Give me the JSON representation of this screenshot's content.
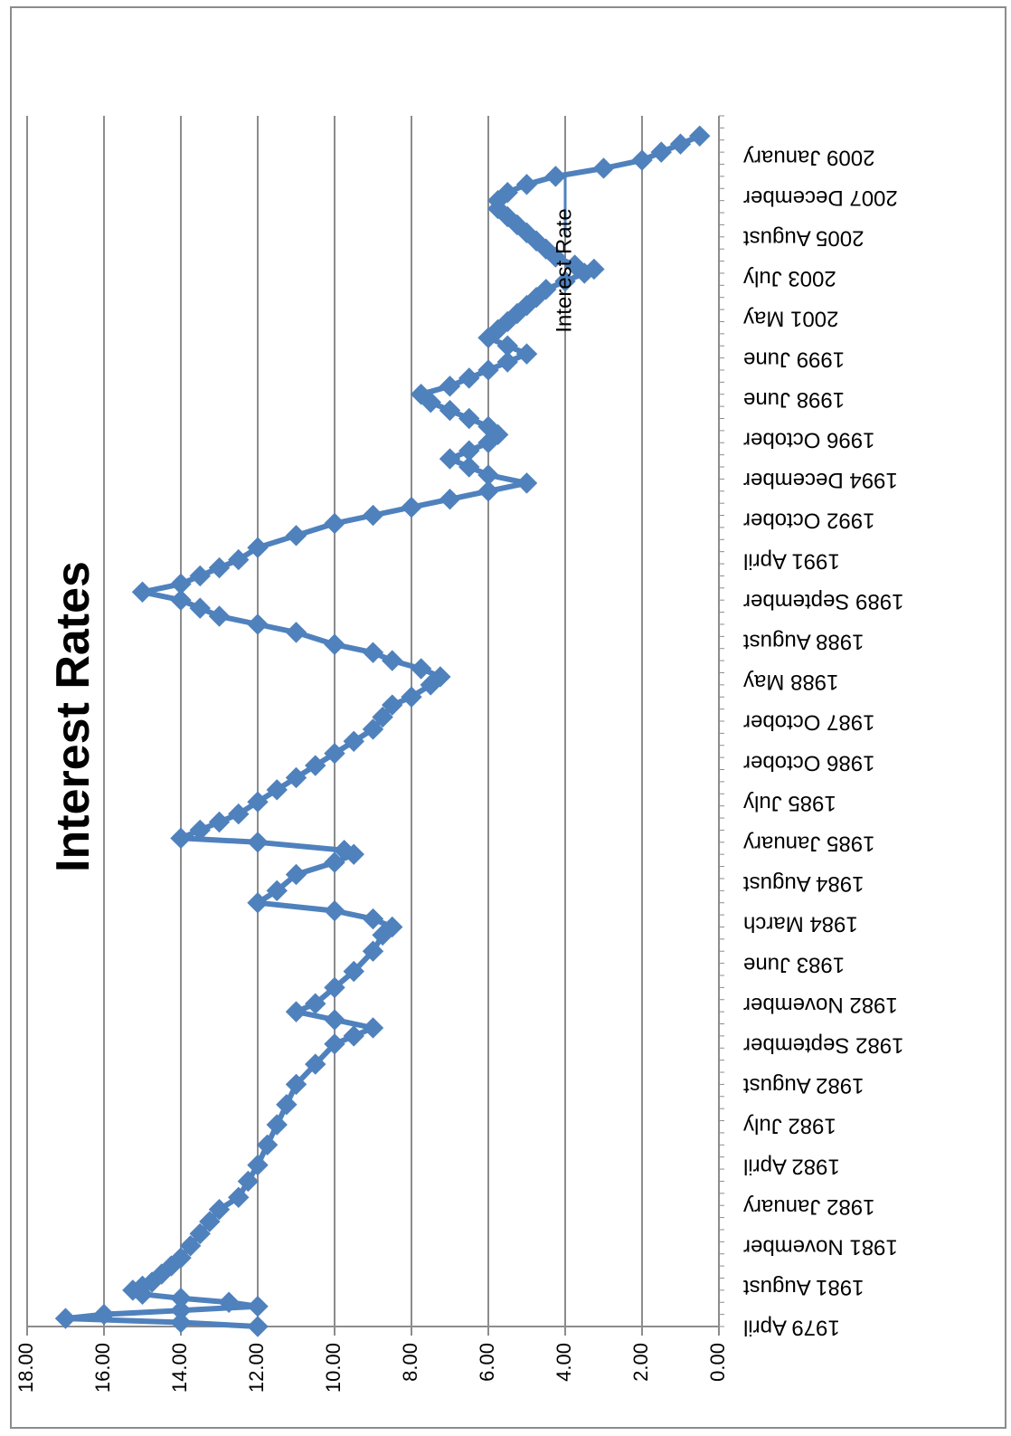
{
  "chart_data": {
    "type": "line",
    "title": "Interest Rates",
    "xlabel": "",
    "ylabel": "",
    "ylim": [
      0,
      18
    ],
    "yticks": [
      "0.00",
      "2.00",
      "4.00",
      "6.00",
      "8.00",
      "10.00",
      "12.00",
      "14.00",
      "16.00",
      "18.00"
    ],
    "grid": true,
    "legend": "inline label at series end",
    "orientation": "page rotated 90 degrees clockwise",
    "colors": {
      "series": "#4f81bd",
      "grid": "#8c8c8c",
      "axis": "#8c8c8c",
      "text": "#000000"
    },
    "category_count": 301,
    "category_labels": [
      {
        "index": 0,
        "label": "1979 April"
      },
      {
        "index": 10,
        "label": "1981 August"
      },
      {
        "index": 20,
        "label": "1981 November"
      },
      {
        "index": 30,
        "label": "1982 January"
      },
      {
        "index": 40,
        "label": "1982 April"
      },
      {
        "index": 50,
        "label": "1982 July"
      },
      {
        "index": 60,
        "label": "1982 August"
      },
      {
        "index": 70,
        "label": "1982 September"
      },
      {
        "index": 80,
        "label": "1982 November"
      },
      {
        "index": 90,
        "label": "1983 June"
      },
      {
        "index": 100,
        "label": "1984 March"
      },
      {
        "index": 110,
        "label": "1984 August"
      },
      {
        "index": 120,
        "label": "1985 January"
      },
      {
        "index": 130,
        "label": "1985 July"
      },
      {
        "index": 140,
        "label": "1986 October"
      },
      {
        "index": 150,
        "label": "1987 October"
      },
      {
        "index": 160,
        "label": "1988 May"
      },
      {
        "index": 170,
        "label": "1988 August"
      },
      {
        "index": 180,
        "label": "1989 September"
      },
      {
        "index": 190,
        "label": "1991 April"
      },
      {
        "index": 200,
        "label": "1992 October"
      },
      {
        "index": 210,
        "label": "1994 December"
      },
      {
        "index": 220,
        "label": "1996 October"
      },
      {
        "index": 230,
        "label": "1998 June"
      },
      {
        "index": 240,
        "label": "1999 June"
      },
      {
        "index": 250,
        "label": "2001 May"
      },
      {
        "index": 260,
        "label": "2003 July"
      },
      {
        "index": 270,
        "label": "2005 August"
      },
      {
        "index": 280,
        "label": "2007 December"
      },
      {
        "index": 290,
        "label": "2009 January"
      }
    ],
    "series": [
      {
        "name": "Interest Rate",
        "points": [
          [
            0,
            12
          ],
          [
            1,
            14
          ],
          [
            2,
            17
          ],
          [
            3,
            16
          ],
          [
            4,
            14
          ],
          [
            5,
            12
          ],
          [
            6,
            12.75
          ],
          [
            7,
            14
          ],
          [
            8,
            15
          ],
          [
            9,
            15.25
          ],
          [
            10,
            15
          ],
          [
            11,
            14.75
          ],
          [
            13,
            14.5
          ],
          [
            15,
            14.25
          ],
          [
            17,
            14
          ],
          [
            20,
            13.75
          ],
          [
            23,
            13.5
          ],
          [
            26,
            13.25
          ],
          [
            29,
            13
          ],
          [
            32,
            12.5
          ],
          [
            36,
            12.25
          ],
          [
            40,
            12
          ],
          [
            45,
            11.75
          ],
          [
            50,
            11.5
          ],
          [
            55,
            11.25
          ],
          [
            60,
            11
          ],
          [
            65,
            10.5
          ],
          [
            70,
            10
          ],
          [
            72,
            9.5
          ],
          [
            74,
            9
          ],
          [
            76,
            10
          ],
          [
            78,
            11
          ],
          [
            80,
            10.5
          ],
          [
            84,
            10
          ],
          [
            88,
            9.5
          ],
          [
            93,
            9
          ],
          [
            97,
            8.75
          ],
          [
            99,
            8.5
          ],
          [
            101,
            9
          ],
          [
            103,
            10
          ],
          [
            105,
            12
          ],
          [
            108,
            11.5
          ],
          [
            112,
            11
          ],
          [
            115,
            10
          ],
          [
            117,
            9.5
          ],
          [
            118,
            9.75
          ],
          [
            120,
            12
          ],
          [
            121,
            14
          ],
          [
            123,
            13.5
          ],
          [
            125,
            13
          ],
          [
            127,
            12.5
          ],
          [
            130,
            12
          ],
          [
            133,
            11.5
          ],
          [
            136,
            11
          ],
          [
            139,
            10.5
          ],
          [
            142,
            10
          ],
          [
            145,
            9.5
          ],
          [
            148,
            9
          ],
          [
            151,
            8.75
          ],
          [
            154,
            8.5
          ],
          [
            156,
            8
          ],
          [
            159,
            7.5
          ],
          [
            161,
            7.25
          ],
          [
            163,
            7.75
          ],
          [
            165,
            8.5
          ],
          [
            167,
            9
          ],
          [
            169,
            10
          ],
          [
            172,
            11
          ],
          [
            174,
            12
          ],
          [
            176,
            13
          ],
          [
            178,
            13.5
          ],
          [
            180,
            14
          ],
          [
            182,
            15
          ],
          [
            184,
            14
          ],
          [
            186,
            13.5
          ],
          [
            188,
            13
          ],
          [
            190,
            12.5
          ],
          [
            193,
            12
          ],
          [
            196,
            11
          ],
          [
            199,
            10
          ],
          [
            201,
            9
          ],
          [
            203,
            8
          ],
          [
            205,
            7
          ],
          [
            207,
            6
          ],
          [
            209,
            5
          ],
          [
            211,
            6
          ],
          [
            213,
            6.5
          ],
          [
            215,
            7
          ],
          [
            217,
            6.5
          ],
          [
            219,
            6
          ],
          [
            221,
            5.75
          ],
          [
            223,
            6
          ],
          [
            225,
            6.5
          ],
          [
            227,
            7
          ],
          [
            229,
            7.5
          ],
          [
            231,
            7.75
          ],
          [
            233,
            7
          ],
          [
            235,
            6.5
          ],
          [
            237,
            6
          ],
          [
            239,
            5.5
          ],
          [
            241,
            5
          ],
          [
            243,
            5.5
          ],
          [
            245,
            6
          ],
          [
            247,
            5.75
          ],
          [
            249,
            5.5
          ],
          [
            251,
            5.25
          ],
          [
            253,
            5
          ],
          [
            255,
            4.75
          ],
          [
            257,
            4.5
          ],
          [
            259,
            4
          ],
          [
            261,
            3.5
          ],
          [
            262,
            3.25
          ],
          [
            263,
            3.75
          ],
          [
            265,
            4.25
          ],
          [
            267,
            4.5
          ],
          [
            269,
            4.75
          ],
          [
            271,
            5
          ],
          [
            273,
            5.25
          ],
          [
            275,
            5.5
          ],
          [
            277,
            5.75
          ],
          [
            279,
            5.75
          ],
          [
            281,
            5.5
          ],
          [
            283,
            5
          ],
          [
            285,
            4.25
          ],
          [
            287,
            3
          ],
          [
            289,
            2
          ],
          [
            291,
            1.5
          ],
          [
            293,
            1
          ],
          [
            295,
            0.5
          ]
        ]
      }
    ]
  }
}
